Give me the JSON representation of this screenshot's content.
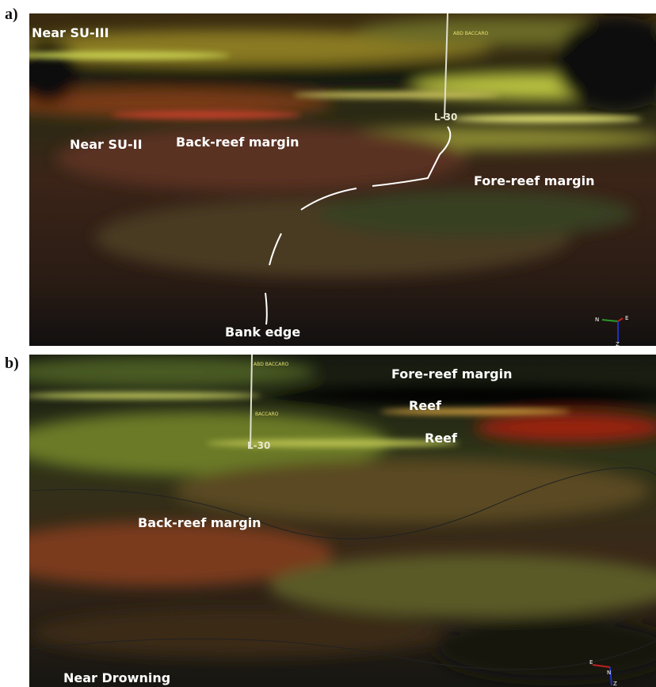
{
  "panels": [
    {
      "label": "a)",
      "well": "L-30",
      "well_tops": [
        "ABD BACCARO"
      ],
      "annotations": [
        "Near SU-III",
        "Near SU-II",
        "Back-reef margin",
        "Fore-reef margin",
        "Bank edge"
      ],
      "compass": [
        "N",
        "E",
        "Z"
      ]
    },
    {
      "label": "b)",
      "well": "L-30",
      "well_tops": [
        "ABD BACCARO",
        "BACCARO"
      ],
      "annotations": [
        "Fore-reef margin",
        "Reef",
        "Reef",
        "Back-reef margin",
        "Near Drowning"
      ],
      "compass": [
        "E",
        "N",
        "Z"
      ]
    }
  ]
}
